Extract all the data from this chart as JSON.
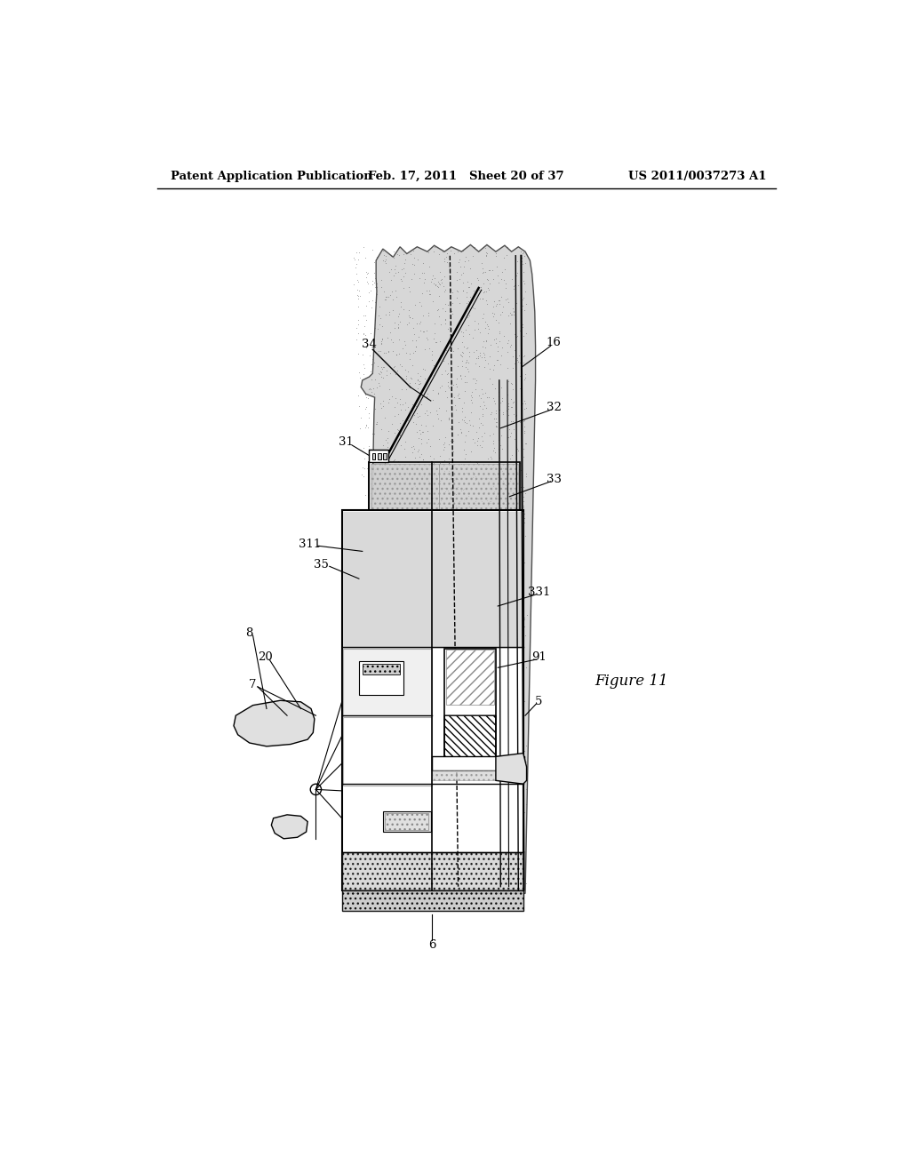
{
  "background_color": "#ffffff",
  "header_left": "Patent Application Publication",
  "header_mid": "Feb. 17, 2011   Sheet 20 of 37",
  "header_right": "US 2011/0037273 A1",
  "figure_label": "Figure 11",
  "rock_fill": "#c8c8c8",
  "rock_stipple": "#888888",
  "hatch_fill": "#aaaaaa",
  "white": "#ffffff",
  "black": "#000000"
}
